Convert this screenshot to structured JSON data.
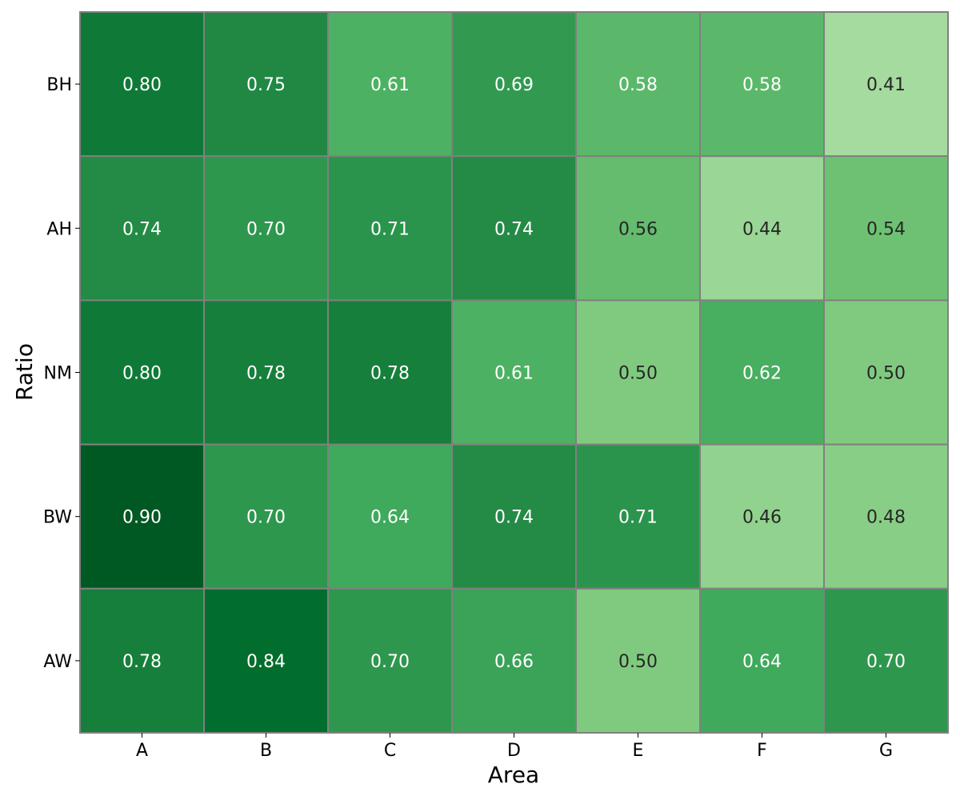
{
  "chart_data": {
    "type": "heatmap",
    "title": "",
    "xlabel": "Area",
    "ylabel": "Ratio",
    "x_categories": [
      "A",
      "B",
      "C",
      "D",
      "E",
      "F",
      "G"
    ],
    "y_categories": [
      "BH",
      "AH",
      "NM",
      "BW",
      "AW"
    ],
    "values": [
      [
        0.8,
        0.75,
        0.61,
        0.69,
        0.58,
        0.58,
        0.41
      ],
      [
        0.74,
        0.7,
        0.71,
        0.74,
        0.56,
        0.44,
        0.54
      ],
      [
        0.8,
        0.78,
        0.78,
        0.61,
        0.5,
        0.62,
        0.5
      ],
      [
        0.9,
        0.7,
        0.64,
        0.74,
        0.71,
        0.46,
        0.48
      ],
      [
        0.78,
        0.84,
        0.7,
        0.66,
        0.5,
        0.64,
        0.7
      ]
    ],
    "value_format": "2 decimals",
    "colormap": "Greens",
    "value_range": [
      0.41,
      0.9
    ],
    "cell_border_color": "#808080",
    "annotation_colors": {
      "light": "#ffffff",
      "dark": "#262626"
    },
    "grid": false,
    "colorbar": false
  }
}
